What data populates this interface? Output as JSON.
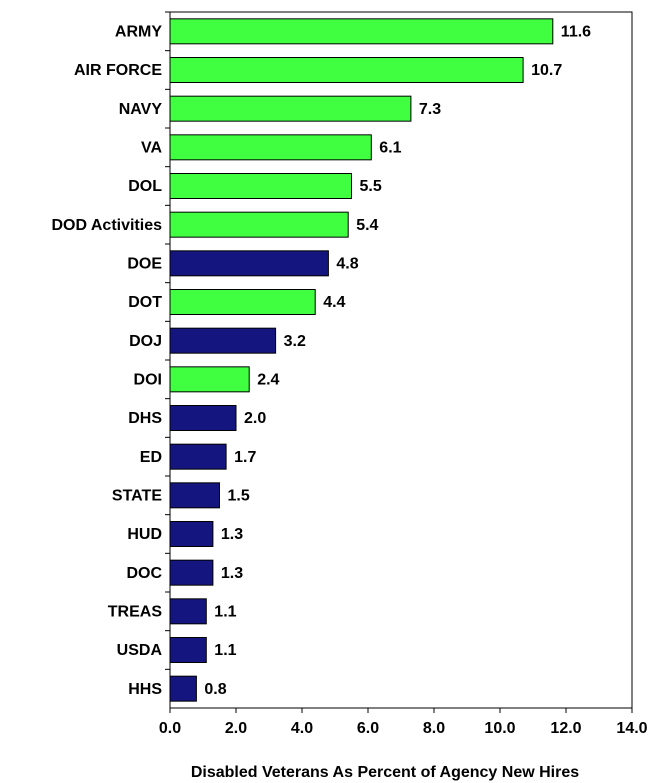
{
  "chart_data": {
    "type": "bar",
    "orientation": "horizontal",
    "x_label": "Disabled Veterans As Percent of Agency New Hires",
    "categories": [
      "ARMY",
      "AIR FORCE",
      "NAVY",
      "VA",
      "DOL",
      "DOD Activities",
      "DOE",
      "DOT",
      "DOJ",
      "DOI",
      "DHS",
      "ED",
      "STATE",
      "HUD",
      "DOC",
      "TREAS",
      "USDA",
      "HHS"
    ],
    "values": [
      11.6,
      10.7,
      7.3,
      6.1,
      5.5,
      5.4,
      4.8,
      4.4,
      3.2,
      2.4,
      2.0,
      1.7,
      1.5,
      1.3,
      1.3,
      1.1,
      1.1,
      0.8
    ],
    "value_labels": [
      "11.6",
      "10.7",
      "7.3",
      "6.1",
      "5.5",
      "5.4",
      "4.8",
      "4.4",
      "3.2",
      "2.4",
      "2.0",
      "1.7",
      "1.5",
      "1.3",
      "1.3",
      "1.1",
      "1.1",
      "0.8"
    ],
    "colors": [
      "#40ff40",
      "#40ff40",
      "#40ff40",
      "#40ff40",
      "#40ff40",
      "#40ff40",
      "#15157f",
      "#40ff40",
      "#15157f",
      "#40ff40",
      "#15157f",
      "#15157f",
      "#15157f",
      "#15157f",
      "#15157f",
      "#15157f",
      "#15157f",
      "#15157f"
    ],
    "xlim": [
      0,
      14
    ],
    "xticks": [
      {
        "value": 0,
        "label": "0.0"
      },
      {
        "value": 2,
        "label": "2.0"
      },
      {
        "value": 4,
        "label": "4.0"
      },
      {
        "value": 6,
        "label": "6.0"
      },
      {
        "value": 8,
        "label": "8.0"
      },
      {
        "value": 10,
        "label": "10.0"
      },
      {
        "value": 12,
        "label": "12.0"
      },
      {
        "value": 14,
        "label": "14.0"
      }
    ],
    "grid": false
  }
}
